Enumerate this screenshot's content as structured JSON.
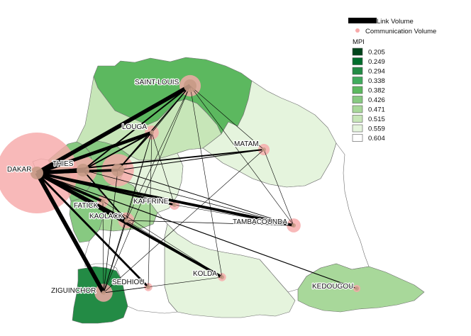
{
  "map": {
    "regions": [
      {
        "id": "saint-louis",
        "mpi": 0.382
      },
      {
        "id": "louga",
        "mpi": 0.515
      },
      {
        "id": "matam",
        "mpi": 0.559
      },
      {
        "id": "dakar",
        "mpi": 0.604
      },
      {
        "id": "thies",
        "mpi": 0.426
      },
      {
        "id": "diourbel",
        "mpi": 0.426
      },
      {
        "id": "fatick",
        "mpi": 0.426
      },
      {
        "id": "kaolack",
        "mpi": 0.471
      },
      {
        "id": "kaffrine",
        "mpi": 0.559
      },
      {
        "id": "tambacounda",
        "mpi": 0.604
      },
      {
        "id": "kolda",
        "mpi": 0.559
      },
      {
        "id": "sedhiou",
        "mpi": 0.604
      },
      {
        "id": "ziguinchor",
        "mpi": 0.294
      },
      {
        "id": "kedougou",
        "mpi": 0.471
      }
    ],
    "cities": [
      {
        "id": "dakar",
        "label": "DAKAR",
        "volume": 1.0
      },
      {
        "id": "thies",
        "label": "THIES",
        "volume": 0.12
      },
      {
        "id": "diourbel",
        "label": "",
        "volume": 0.16
      },
      {
        "id": "saint-louis",
        "label": "SAINT-LOUIS",
        "volume": 0.07
      },
      {
        "id": "louga",
        "label": "LOUGA",
        "volume": 0.03
      },
      {
        "id": "matam",
        "label": "MATAM",
        "volume": 0.02
      },
      {
        "id": "fatick",
        "label": "FATICK",
        "volume": 0.02
      },
      {
        "id": "kaolack",
        "label": "KAOLACK",
        "volume": 0.04
      },
      {
        "id": "kaffrine",
        "label": "KAFFRINE",
        "volume": 0.015
      },
      {
        "id": "tambacounda",
        "label": "TAMBACOUNDA",
        "volume": 0.03
      },
      {
        "id": "kolda",
        "label": "KOLDA",
        "volume": 0.01
      },
      {
        "id": "sedhiou",
        "label": "SEDHIOU",
        "volume": 0.01
      },
      {
        "id": "ziguinchor",
        "label": "ZIGUINCHOR",
        "volume": 0.05
      },
      {
        "id": "kedougou",
        "label": "KEDOUGOU",
        "volume": 0.008
      }
    ],
    "links": [
      {
        "from": "dakar",
        "to": "saint-louis",
        "volume": 6
      },
      {
        "from": "dakar",
        "to": "louga",
        "volume": 5
      },
      {
        "from": "dakar",
        "to": "matam",
        "volume": 2
      },
      {
        "from": "dakar",
        "to": "diourbel",
        "volume": 4
      },
      {
        "from": "dakar",
        "to": "thies",
        "volume": 6
      },
      {
        "from": "dakar",
        "to": "fatick",
        "volume": 4
      },
      {
        "from": "dakar",
        "to": "kaolack",
        "volume": 5
      },
      {
        "from": "dakar",
        "to": "kaffrine",
        "volume": 3
      },
      {
        "from": "dakar",
        "to": "tambacounda",
        "volume": 4
      },
      {
        "from": "dakar",
        "to": "kolda",
        "volume": 4
      },
      {
        "from": "dakar",
        "to": "sedhiou",
        "volume": 3
      },
      {
        "from": "dakar",
        "to": "ziguinchor",
        "volume": 6
      },
      {
        "from": "dakar",
        "to": "kedougou",
        "volume": 1.2
      },
      {
        "from": "thies",
        "to": "saint-louis",
        "volume": 2
      },
      {
        "from": "thies",
        "to": "louga",
        "volume": 2
      },
      {
        "from": "thies",
        "to": "kaolack",
        "volume": 2
      },
      {
        "from": "diourbel",
        "to": "louga",
        "volume": 1.5
      },
      {
        "from": "diourbel",
        "to": "saint-louis",
        "volume": 1.5
      },
      {
        "from": "diourbel",
        "to": "tambacounda",
        "volume": 1
      },
      {
        "from": "diourbel",
        "to": "matam",
        "volume": 1
      },
      {
        "from": "saint-louis",
        "to": "louga",
        "volume": 0.8
      },
      {
        "from": "saint-louis",
        "to": "matam",
        "volume": 0.6
      },
      {
        "from": "saint-louis",
        "to": "kaolack",
        "volume": 0.6
      },
      {
        "from": "saint-louis",
        "to": "ziguinchor",
        "volume": 0.6
      },
      {
        "from": "saint-louis",
        "to": "kolda",
        "volume": 0.5
      },
      {
        "from": "saint-louis",
        "to": "tambacounda",
        "volume": 0.5
      },
      {
        "from": "louga",
        "to": "kaolack",
        "volume": 0.6
      },
      {
        "from": "louga",
        "to": "ziguinchor",
        "volume": 0.6
      },
      {
        "from": "louga",
        "to": "kaffrine",
        "volume": 0.5
      },
      {
        "from": "louga",
        "to": "sedhiou",
        "volume": 0.5
      },
      {
        "from": "kaolack",
        "to": "tambacounda",
        "volume": 0.8
      },
      {
        "from": "kaolack",
        "to": "ziguinchor",
        "volume": 1
      },
      {
        "from": "kaolack",
        "to": "kolda",
        "volume": 0.6
      },
      {
        "from": "kaffrine",
        "to": "tambacounda",
        "volume": 0.6
      },
      {
        "from": "matam",
        "to": "tambacounda",
        "volume": 0.5
      },
      {
        "from": "matam",
        "to": "ziguinchor",
        "volume": 0.4
      },
      {
        "from": "ziguinchor",
        "to": "sedhiou",
        "volume": 0.8
      },
      {
        "from": "ziguinchor",
        "to": "kolda",
        "volume": 0.6
      },
      {
        "from": "fatick",
        "to": "ziguinchor",
        "volume": 0.6
      },
      {
        "from": "fatick",
        "to": "kolda",
        "volume": 0.5
      },
      {
        "from": "diourbel",
        "to": "ziguinchor",
        "volume": 0.8
      },
      {
        "from": "thies",
        "to": "tambacounda",
        "volume": 0.8
      }
    ]
  },
  "legend": {
    "link_label": "Link Volume",
    "comm_label": "Communication Volume",
    "mpi_title": "MPI",
    "scale": [
      {
        "value": "0.205",
        "color": "#00441b"
      },
      {
        "value": "0.249",
        "color": "#006d2c"
      },
      {
        "value": "0.294",
        "color": "#238b45"
      },
      {
        "value": "0.338",
        "color": "#41ab5d"
      },
      {
        "value": "0.382",
        "color": "#5cb85f"
      },
      {
        "value": "0.426",
        "color": "#87c981"
      },
      {
        "value": "0.471",
        "color": "#a8d89a"
      },
      {
        "value": "0.515",
        "color": "#c7e6b8"
      },
      {
        "value": "0.559",
        "color": "#e5f4dd"
      },
      {
        "value": "0.604",
        "color": "#ffffff"
      }
    ]
  },
  "colors": {
    "border": "#6e6e6e",
    "link": "#000000",
    "circle_fill": "#f7a9a9",
    "circle_center": "#c79a86"
  }
}
